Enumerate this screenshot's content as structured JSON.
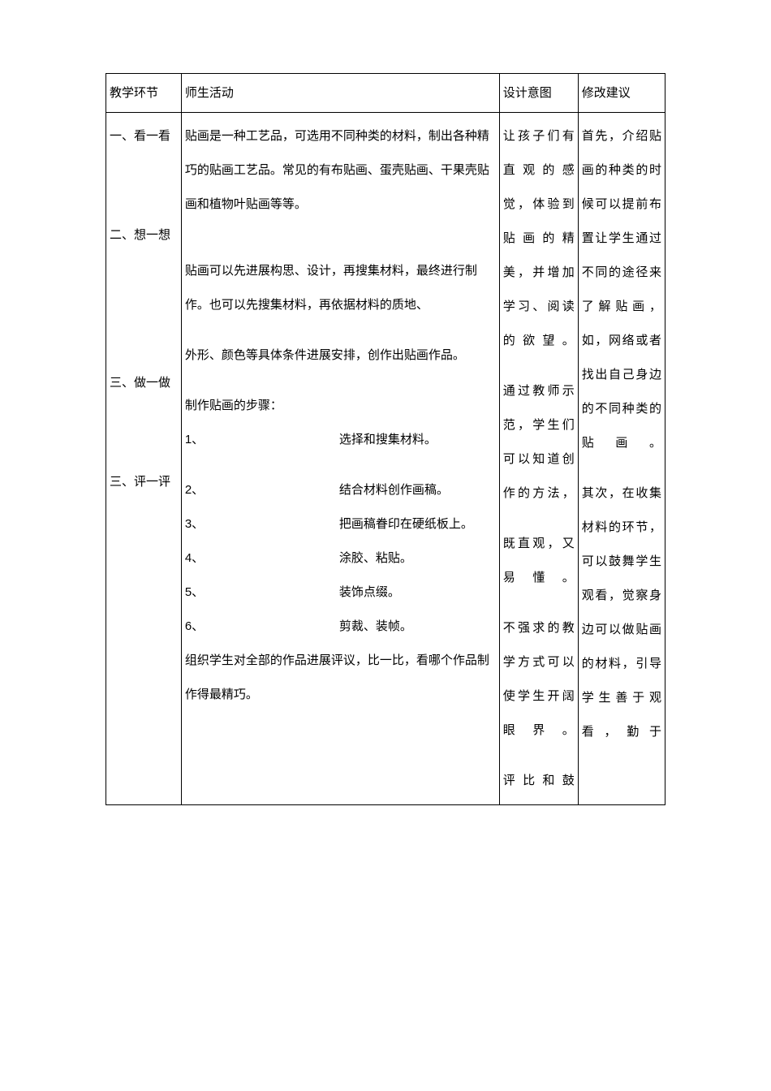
{
  "header": {
    "col1": "教学环节",
    "col2": "师生活动",
    "col3": "设计意图",
    "col4": "修改建议"
  },
  "rows": {
    "section1": {
      "label": "一、看一看",
      "content": "贴画是一种工艺品，可选用不同种类的材料，制出各种精巧的贴画工艺品。常见的有布贴画、蛋壳贴画、干果壳贴画和植物叶贴画等等。"
    },
    "section2": {
      "label": "二、想一想",
      "content1": "贴画可以先进展构思、设计，再搜集材料，最终进行制作。也可以先搜集材料，再依据材料的质地、",
      "content2": "外形、颜色等具体条件进展安排，创作出贴画作品。"
    },
    "section3": {
      "label": "三、做一做",
      "intro": "制作贴画的步骤：",
      "steps": [
        {
          "num": "1、",
          "text": "选择和搜集材料。"
        },
        {
          "num": "2、",
          "text": "结合材料创作画稿。"
        },
        {
          "num": "3、",
          "text": "把画稿眷印在硬纸板上。"
        },
        {
          "num": "4、",
          "text": "涂胶、粘贴。"
        },
        {
          "num": "5、",
          "text": "装饰点缀。"
        },
        {
          "num": "6、",
          "text": "剪裁、装帧。"
        }
      ]
    },
    "section4": {
      "label": "三、评一评",
      "content": "组织学生对全部的作品进展评议，比一比，看哪个作品制作得最精巧。"
    }
  },
  "col3_content": {
    "p1": "让孩子们有直观的感觉，体验到贴画的精美，并增加学习、阅读的欲望。",
    "p2": "通过教师示范，学生们可以知道创作的方法，",
    "p3": "既直观，又易懂。",
    "p4": "不强求的教学方式可以使学生开阔眼界。",
    "p5": "评比和鼓"
  },
  "col4_content": {
    "p1": "首先，介绍贴画的种类的时候可以提前布置让学生通过不同的途径来了解贴画，如，网络或者找出自己身边的不同种类的贴画。",
    "p2": "其次，在收集材料的环节，可以鼓舞学生观看，觉察身边可以做贴画的材料，引导学生善于观看，勤于"
  },
  "colors": {
    "border": "#000000",
    "text": "#000000",
    "background": "#ffffff"
  }
}
